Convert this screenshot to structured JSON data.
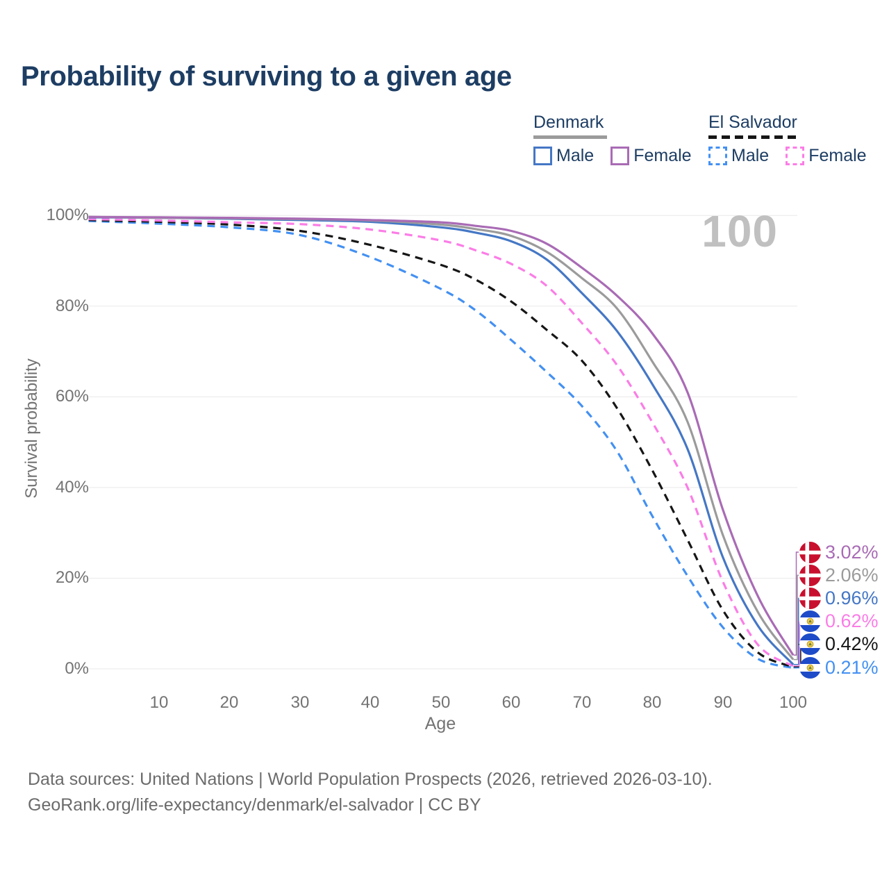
{
  "header": {
    "title": "Probability of surviving to a given age"
  },
  "watermark": "100",
  "legend": {
    "groups": [
      {
        "label": "Denmark",
        "line_style": "solid",
        "underline_color": "#9b9b9b",
        "items": [
          {
            "label": "Male",
            "color": "#4577c5"
          },
          {
            "label": "Female",
            "color": "#a96bb5"
          }
        ]
      },
      {
        "label": "El Salvador",
        "line_style": "dashed",
        "underline_color": "#161616",
        "items": [
          {
            "label": "Male",
            "color": "#4390f2"
          },
          {
            "label": "Female",
            "color": "#fb7de6"
          }
        ]
      }
    ]
  },
  "chart_data": {
    "type": "line",
    "title": "Probability of surviving to a given age",
    "xlabel": "Age",
    "ylabel": "Survival probability",
    "xlim": [
      0,
      100
    ],
    "ylim": [
      0,
      100
    ],
    "grid": "horizontal",
    "legend_position": "top-right",
    "x_ticks": [
      10,
      20,
      30,
      40,
      50,
      60,
      70,
      80,
      90,
      100
    ],
    "y_tick_labels": [
      "100%",
      "80%",
      "60%",
      "40%",
      "20%",
      "0%"
    ],
    "ages": [
      0,
      10,
      20,
      30,
      40,
      50,
      55,
      60,
      65,
      70,
      75,
      80,
      85,
      90,
      95,
      100
    ],
    "series": [
      {
        "name": "Denmark Female",
        "country": "Denmark",
        "sex": "Female",
        "line_style": "solid",
        "color": "#a96bb5",
        "end_label": "3.02%",
        "values": [
          99.7,
          99.6,
          99.5,
          99.3,
          99.0,
          98.5,
          97.7,
          96.6,
          93.8,
          88.5,
          82.3,
          74.0,
          61.0,
          35.2,
          16.0,
          3.02
        ]
      },
      {
        "name": "Denmark Total",
        "country": "Denmark",
        "sex": "Total",
        "line_style": "solid",
        "color": "#9b9b9b",
        "end_label": "2.06%",
        "values": [
          99.7,
          99.5,
          99.4,
          99.2,
          98.9,
          98.0,
          97.0,
          95.5,
          92.0,
          86.2,
          79.5,
          67.8,
          54.5,
          29.6,
          12.5,
          2.06
        ]
      },
      {
        "name": "Denmark Male",
        "country": "Denmark",
        "sex": "Male",
        "line_style": "solid",
        "color": "#4577c5",
        "end_label": "0.96%",
        "values": [
          99.6,
          99.5,
          99.3,
          99.0,
          98.6,
          97.4,
          96.2,
          94.3,
          90.3,
          82.9,
          74.5,
          62.8,
          48.5,
          24.7,
          9.5,
          0.96
        ]
      },
      {
        "name": "El Salvador Female",
        "country": "El Salvador",
        "sex": "Female",
        "line_style": "dashed",
        "color": "#fb7de6",
        "end_label": "0.62%",
        "values": [
          99.2,
          98.9,
          98.5,
          98.1,
          96.9,
          94.5,
          92.3,
          89.3,
          84.5,
          76.3,
          67.0,
          54.4,
          40.0,
          19.3,
          5.3,
          0.62
        ]
      },
      {
        "name": "El Salvador Total",
        "country": "El Salvador",
        "sex": "Total",
        "line_style": "dashed",
        "color": "#161616",
        "end_label": "0.42%",
        "values": [
          99.0,
          98.6,
          98.0,
          96.6,
          93.5,
          89.1,
          85.8,
          81.0,
          74.8,
          68.0,
          57.5,
          43.8,
          28.5,
          13.0,
          3.6,
          0.42
        ]
      },
      {
        "name": "El Salvador Male",
        "country": "El Salvador",
        "sex": "Male",
        "line_style": "dashed",
        "color": "#4390f2",
        "end_label": "0.21%",
        "values": [
          98.8,
          98.2,
          97.4,
          95.7,
          90.8,
          83.8,
          79.0,
          72.5,
          65.5,
          58.0,
          48.0,
          33.7,
          20.5,
          9.2,
          2.2,
          0.21
        ]
      }
    ],
    "watermark": "100"
  },
  "endpoints": [
    {
      "flag": "denmark",
      "value": "3.02%",
      "color": "#a96bb5"
    },
    {
      "flag": "denmark",
      "value": "2.06%",
      "color": "#9b9b9b"
    },
    {
      "flag": "denmark",
      "value": "0.96%",
      "color": "#4577c5"
    },
    {
      "flag": "el-salvador",
      "value": "0.62%",
      "color": "#fb7de6"
    },
    {
      "flag": "el-salvador",
      "value": "0.42%",
      "color": "#161616"
    },
    {
      "flag": "el-salvador",
      "value": "0.21%",
      "color": "#4390f2"
    }
  ],
  "footer": {
    "line1": "Data sources: United Nations | World Population Prospects (2026, retrieved 2026-03-10).",
    "line2": "GeoRank.org/life-expectancy/denmark/el-salvador | CC BY"
  }
}
